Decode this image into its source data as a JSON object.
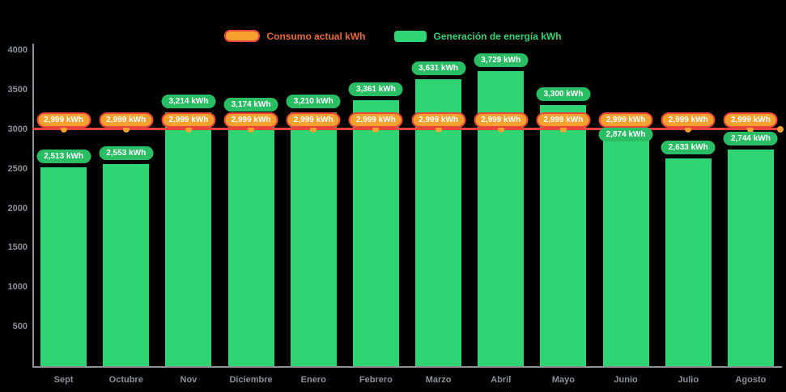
{
  "legend": {
    "consumption_label": "Consumo actual kWh",
    "generation_label": "Generación de energía kWh"
  },
  "colors": {
    "background": "#000000",
    "bar_green": "#2fd573",
    "pill_green": "#29bd64",
    "orange": "#f6a12d",
    "red": "#e8453c",
    "axis_text": "#8b9199",
    "axis_line": "#8b9199",
    "legend_consumption_text": "#ee6a33",
    "legend_generation_text": "#2fd573"
  },
  "chart_data": {
    "type": "bar",
    "title": "",
    "xlabel": "",
    "ylabel": "",
    "ylim": [
      0,
      4000
    ],
    "yticks": [
      4000,
      3500,
      3000,
      2500,
      2000,
      1500,
      1000,
      500
    ],
    "grid": false,
    "legend_position": "top",
    "categories": [
      "Sept",
      "Octubre",
      "Nov",
      "Diciembre",
      "Enero",
      "Febrero",
      "Marzo",
      "Abril",
      "Mayo",
      "Junio",
      "Julio",
      "Agosto"
    ],
    "series": [
      {
        "name": "Generación de energía kWh",
        "type": "bar",
        "values": [
          2513,
          2553,
          3214,
          3174,
          3210,
          3361,
          3631,
          3729,
          3300,
          2874,
          2633,
          2744
        ],
        "labels": [
          "2,513 kWh",
          "2,553 kWh",
          "3,214 kWh",
          "3,174 kWh",
          "3,210 kWh",
          "3,361 kWh",
          "3,631 kWh",
          "3,729 kWh",
          "3,300 kWh",
          "2,874 kWh",
          "2,633 kWh",
          "2,744 kWh"
        ]
      },
      {
        "name": "Consumo actual kWh",
        "type": "line",
        "values": [
          2999,
          2999,
          2999,
          2999,
          2999,
          2999,
          2999,
          2999,
          2999,
          2999,
          2999,
          2999
        ],
        "labels": [
          "2,999 kWh",
          "2,999 kWh",
          "2,999 kWh",
          "2,999 kWh",
          "2,999 kWh",
          "2,999 kWh",
          "2,999 kWh",
          "2,999 kWh",
          "2,999 kWh",
          "2,999 kWh",
          "2,999 kWh",
          "2,999 kWh"
        ]
      }
    ]
  }
}
